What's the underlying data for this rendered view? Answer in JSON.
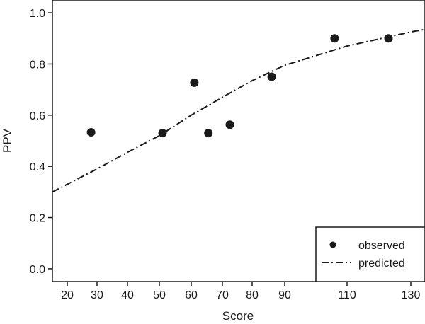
{
  "chart_data": {
    "type": "scatter",
    "xlabel": "Score",
    "ylabel": "PPV",
    "x_ticks": [
      20,
      30,
      40,
      50,
      60,
      70,
      80,
      90,
      110,
      130
    ],
    "y_ticks": [
      0.0,
      0.2,
      0.4,
      0.6,
      0.8,
      1.0
    ],
    "y_tick_labels": [
      "0.0",
      "0.2",
      "0.4",
      "0.6",
      "0.8",
      "1.0"
    ],
    "ylim": [
      -0.05,
      1.05
    ],
    "x_axis_note": "nonlinear x axis: tick spacing widens above 90",
    "series": [
      {
        "name": "observed",
        "style": "filled-circle",
        "color": "#1a1a1a",
        "points": [
          {
            "x": 28,
            "y": 0.533
          },
          {
            "x": 51,
            "y": 0.53
          },
          {
            "x": 61,
            "y": 0.727
          },
          {
            "x": 65.5,
            "y": 0.53
          },
          {
            "x": 72.5,
            "y": 0.563
          },
          {
            "x": 86,
            "y": 0.75
          },
          {
            "x": 106,
            "y": 0.9
          },
          {
            "x": 123,
            "y": 0.9
          }
        ]
      },
      {
        "name": "predicted",
        "style": "dash-dot-line",
        "color": "#1a1a1a",
        "points": [
          {
            "x": 15.5,
            "y": 0.3
          },
          {
            "x": 20,
            "y": 0.33
          },
          {
            "x": 30,
            "y": 0.39
          },
          {
            "x": 40,
            "y": 0.455
          },
          {
            "x": 50,
            "y": 0.52
          },
          {
            "x": 60,
            "y": 0.6
          },
          {
            "x": 70,
            "y": 0.67
          },
          {
            "x": 80,
            "y": 0.735
          },
          {
            "x": 90,
            "y": 0.795
          },
          {
            "x": 110,
            "y": 0.87
          },
          {
            "x": 130,
            "y": 0.925
          },
          {
            "x": 135,
            "y": 0.935
          }
        ]
      }
    ],
    "legend": {
      "position": "bottom-right",
      "entries": [
        {
          "label": "observed",
          "symbol": "filled-circle"
        },
        {
          "label": "predicted",
          "symbol": "dash-dot-line"
        }
      ]
    }
  }
}
